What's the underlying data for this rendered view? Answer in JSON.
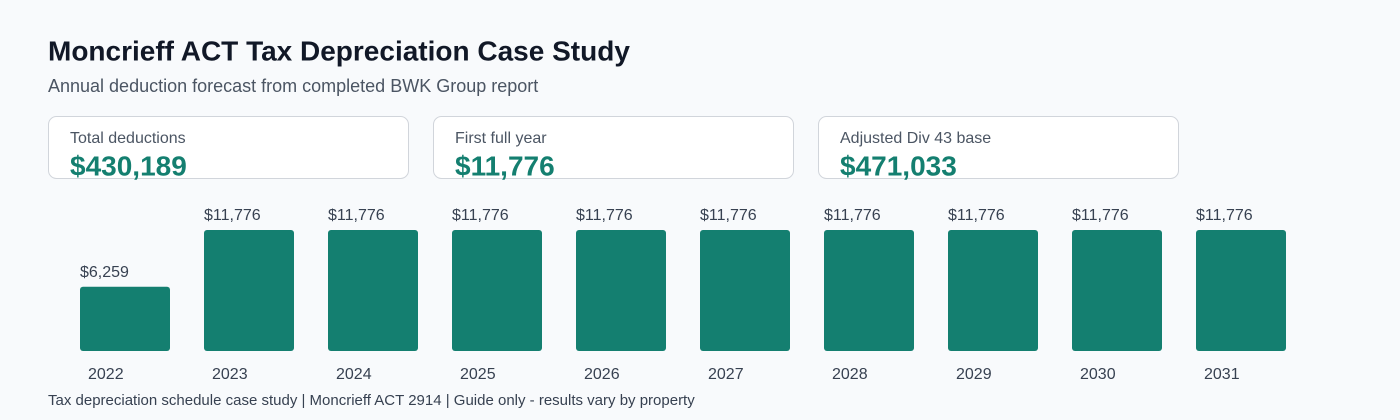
{
  "chart_data": {
    "type": "bar",
    "title": "Moncrieff ACT Tax Depreciation Case Study",
    "subtitle": "Annual deduction forecast from completed BWK Group report",
    "categories": [
      "2022",
      "2023",
      "2024",
      "2025",
      "2026",
      "2027",
      "2028",
      "2029",
      "2030",
      "2031"
    ],
    "values": [
      6259,
      11776,
      11776,
      11776,
      11776,
      11776,
      11776,
      11776,
      11776,
      11776
    ],
    "value_labels": [
      "$6,259",
      "$11,776",
      "$11,776",
      "$11,776",
      "$11,776",
      "$11,776",
      "$11,776",
      "$11,776",
      "$11,776",
      "$11,776"
    ],
    "color": "#147f70"
  },
  "cards": [
    {
      "label": "Total deductions",
      "value": "$430,189"
    },
    {
      "label": "First full year",
      "value": "$11,776"
    },
    {
      "label": "Adjusted Div 43 base",
      "value": "$471,033"
    }
  ],
  "footer": "Tax depreciation schedule case study | Moncrieff ACT 2914 | Guide only - results vary by property"
}
